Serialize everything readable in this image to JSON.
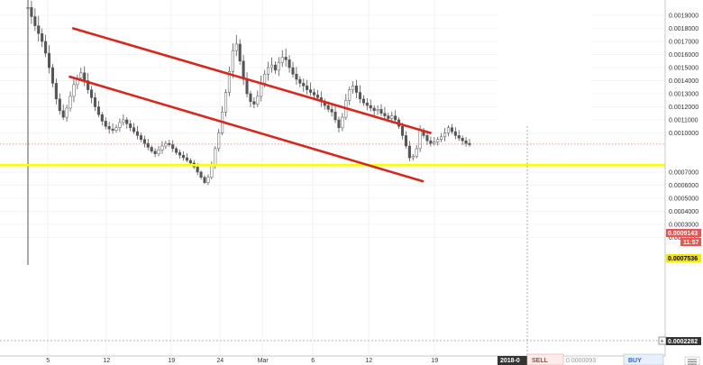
{
  "chart_data": {
    "type": "candlestick",
    "title": "",
    "xlabel": "",
    "ylabel": "",
    "ylim": [
      0.00018,
      0.00198
    ],
    "grid": true,
    "x_ticks": [
      "5",
      "12",
      "19",
      "24",
      "Mar",
      "6",
      "12",
      "19"
    ],
    "y_ticks": [
      "0.0019000",
      "0.0018000",
      "0.0017000",
      "0.0016000",
      "0.0015000",
      "0.0014000",
      "0.0013000",
      "0.0012000",
      "0.0011000",
      "0.0010000",
      "0.0007000",
      "0.0006000",
      "0.0005000",
      "0.0004000",
      "0.0003000",
      "0.0002000"
    ],
    "current_price": 0.0009143,
    "current_price_label": "0.0009143",
    "countdown_label": "11:57",
    "horizontal_level": 0.0007536,
    "horizontal_level_label": "0.0007536",
    "bottom_level": 0.0002282,
    "bottom_level_label": "0.0002282",
    "crosshair_date_label": "2018-0",
    "close_series": [
      0.00196,
      0.00189,
      0.00182,
      0.00176,
      0.0017,
      0.00161,
      0.0015,
      0.00138,
      0.00126,
      0.00117,
      0.00112,
      0.00119,
      0.00128,
      0.00137,
      0.00142,
      0.00146,
      0.0014,
      0.00133,
      0.00127,
      0.0012,
      0.00114,
      0.00109,
      0.00105,
      0.00103,
      0.00102,
      0.00104,
      0.00108,
      0.0011,
      0.00107,
      0.00104,
      0.00101,
      0.00098,
      0.00095,
      0.00092,
      0.00089,
      0.00086,
      0.00084,
      0.00087,
      0.0009,
      0.00092,
      0.00091,
      0.00088,
      0.00085,
      0.00083,
      0.00081,
      0.00079,
      0.00077,
      0.00074,
      0.0007,
      0.00066,
      0.00062,
      0.00066,
      0.00075,
      0.00088,
      0.001,
      0.00116,
      0.00131,
      0.00147,
      0.00163,
      0.00168,
      0.00155,
      0.00141,
      0.0013,
      0.00124,
      0.00122,
      0.00128,
      0.00138,
      0.00145,
      0.0015,
      0.00152,
      0.00148,
      0.00154,
      0.00158,
      0.00156,
      0.0015,
      0.00145,
      0.00141,
      0.00138,
      0.00136,
      0.00133,
      0.00131,
      0.00129,
      0.00127,
      0.00124,
      0.00121,
      0.00118,
      0.00116,
      0.0011,
      0.00104,
      0.00112,
      0.00125,
      0.00133,
      0.00136,
      0.00131,
      0.00126,
      0.00123,
      0.00121,
      0.00119,
      0.00117,
      0.00118,
      0.00115,
      0.00113,
      0.00111,
      0.00113,
      0.0011,
      0.00105,
      0.00098,
      0.0009,
      0.00081,
      0.00082,
      0.00088,
      0.00102,
      0.00098,
      0.00094,
      0.00092,
      0.00093,
      0.00095,
      0.00097,
      0.001,
      0.00104,
      0.00101,
      0.00098,
      0.00096,
      0.00094,
      0.00092,
      0.00091
    ],
    "annotations": [
      {
        "name": "channel-upper",
        "from": {
          "x": 0.1,
          "y": 0.0018
        },
        "to": {
          "x": 0.845,
          "y": 0.001
        }
      },
      {
        "name": "channel-lower",
        "from": {
          "x": 0.093,
          "y": 0.00143
        },
        "to": {
          "x": 0.829,
          "y": 0.00063
        }
      }
    ]
  },
  "colors": {
    "up": "#26a69a",
    "down": "#ef5350",
    "candle": "#555555",
    "trendline": "#d8271c",
    "level_line": "#ffff00",
    "current_tag": "#ef5350",
    "level_tag": "#f6e600",
    "grid": "#e9e9e9"
  },
  "trade_panel": {
    "sell_label": "SELL",
    "buy_label": "BUY",
    "buy_price": "0.0000093"
  }
}
